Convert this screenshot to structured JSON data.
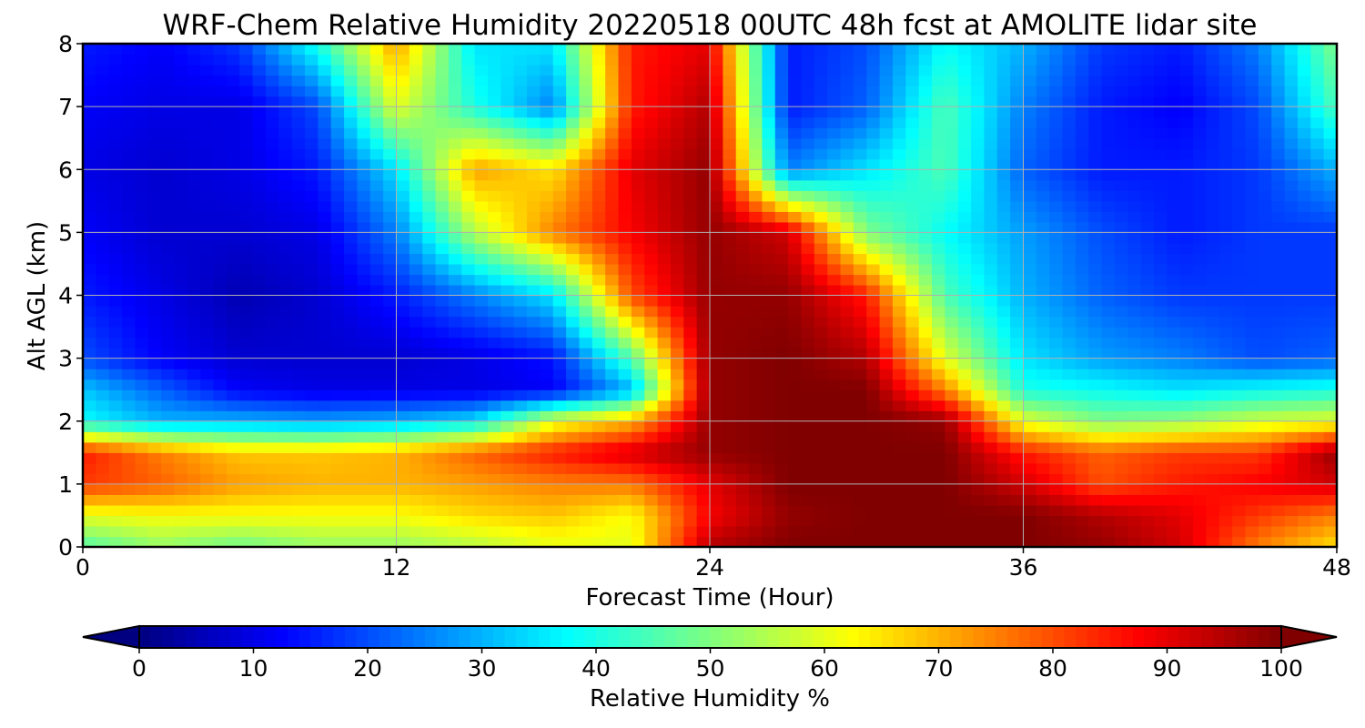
{
  "chart_data": {
    "type": "heatmap",
    "title": "WRF-Chem Relative Humidity 20220518 00UTC 48h fcst at AMOLITE lidar site",
    "xlabel": "Forecast Time (Hour)",
    "ylabel": "Alt AGL (km)",
    "xlim": [
      0,
      48
    ],
    "ylim": [
      0,
      8
    ],
    "xticks": [
      0,
      12,
      24,
      36,
      48
    ],
    "yticks": [
      0,
      1,
      2,
      3,
      4,
      5,
      6,
      7,
      8
    ],
    "grid": true,
    "colorbar": {
      "label": "Relative Humidity %",
      "range": [
        0,
        100
      ],
      "ticks": [
        0,
        10,
        20,
        30,
        40,
        50,
        60,
        70,
        80,
        90,
        100
      ],
      "colormap": "jet",
      "extend": "both"
    },
    "x": [
      0,
      3,
      6,
      9,
      12,
      15,
      18,
      21,
      24,
      27,
      30,
      33,
      36,
      39,
      42,
      45,
      48
    ],
    "y": [
      0,
      0.5,
      1,
      1.5,
      2,
      2.5,
      3,
      4,
      5,
      6,
      7,
      8
    ],
    "z": [
      [
        45,
        52,
        48,
        52,
        52,
        55,
        60,
        60,
        95,
        100,
        100,
        100,
        100,
        98,
        92,
        75,
        65
      ],
      [
        60,
        62,
        62,
        62,
        62,
        66,
        68,
        62,
        88,
        98,
        100,
        100,
        100,
        95,
        90,
        82,
        75
      ],
      [
        82,
        78,
        72,
        70,
        70,
        72,
        75,
        76,
        90,
        100,
        100,
        100,
        92,
        80,
        85,
        88,
        92
      ],
      [
        85,
        75,
        68,
        68,
        70,
        78,
        85,
        92,
        98,
        100,
        100,
        100,
        85,
        78,
        82,
        82,
        98
      ],
      [
        38,
        30,
        30,
        28,
        30,
        35,
        60,
        70,
        98,
        100,
        100,
        98,
        60,
        50,
        52,
        58,
        60
      ],
      [
        32,
        22,
        12,
        10,
        10,
        10,
        12,
        30,
        98,
        100,
        100,
        75,
        40,
        38,
        35,
        38,
        40
      ],
      [
        20,
        12,
        8,
        8,
        8,
        10,
        14,
        45,
        98,
        100,
        95,
        60,
        35,
        28,
        25,
        20,
        22
      ],
      [
        15,
        10,
        5,
        8,
        15,
        25,
        35,
        80,
        98,
        98,
        85,
        45,
        30,
        22,
        18,
        18,
        18
      ],
      [
        12,
        8,
        8,
        10,
        25,
        55,
        75,
        88,
        98,
        92,
        50,
        38,
        28,
        20,
        15,
        18,
        18
      ],
      [
        10,
        8,
        10,
        15,
        35,
        72,
        65,
        90,
        98,
        25,
        35,
        45,
        22,
        15,
        15,
        18,
        30
      ],
      [
        12,
        10,
        10,
        20,
        60,
        40,
        25,
        85,
        95,
        15,
        22,
        45,
        25,
        15,
        12,
        20,
        45
      ],
      [
        15,
        12,
        18,
        40,
        72,
        35,
        35,
        85,
        90,
        15,
        20,
        38,
        30,
        18,
        15,
        25,
        50
      ]
    ]
  }
}
